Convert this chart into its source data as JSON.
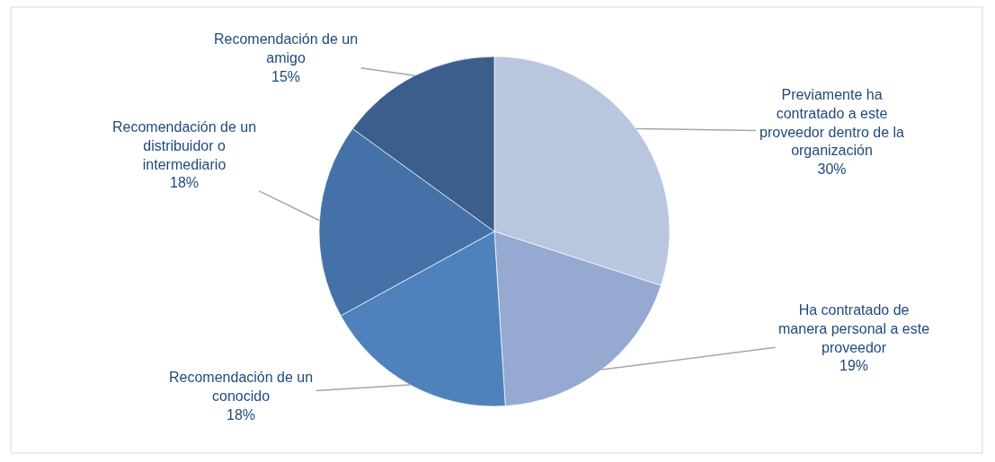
{
  "chart_data": {
    "type": "pie",
    "categories": [
      "Previamente ha contratado a este proveedor dentro de la organización",
      "Ha contratado de manera personal a este proveedor",
      "Recomendación de un conocido",
      "Recomendación de un distribuidor o intermediario",
      "Recomendación de un amigo"
    ],
    "values": [
      30,
      19,
      18,
      18,
      15
    ],
    "value_labels": [
      "30%",
      "19%",
      "18%",
      "18%",
      "15%"
    ],
    "colors": [
      "#b9c6df",
      "#95a9d1",
      "#4f81bd",
      "#4472a8",
      "#3b5e8c"
    ],
    "legend": false
  }
}
